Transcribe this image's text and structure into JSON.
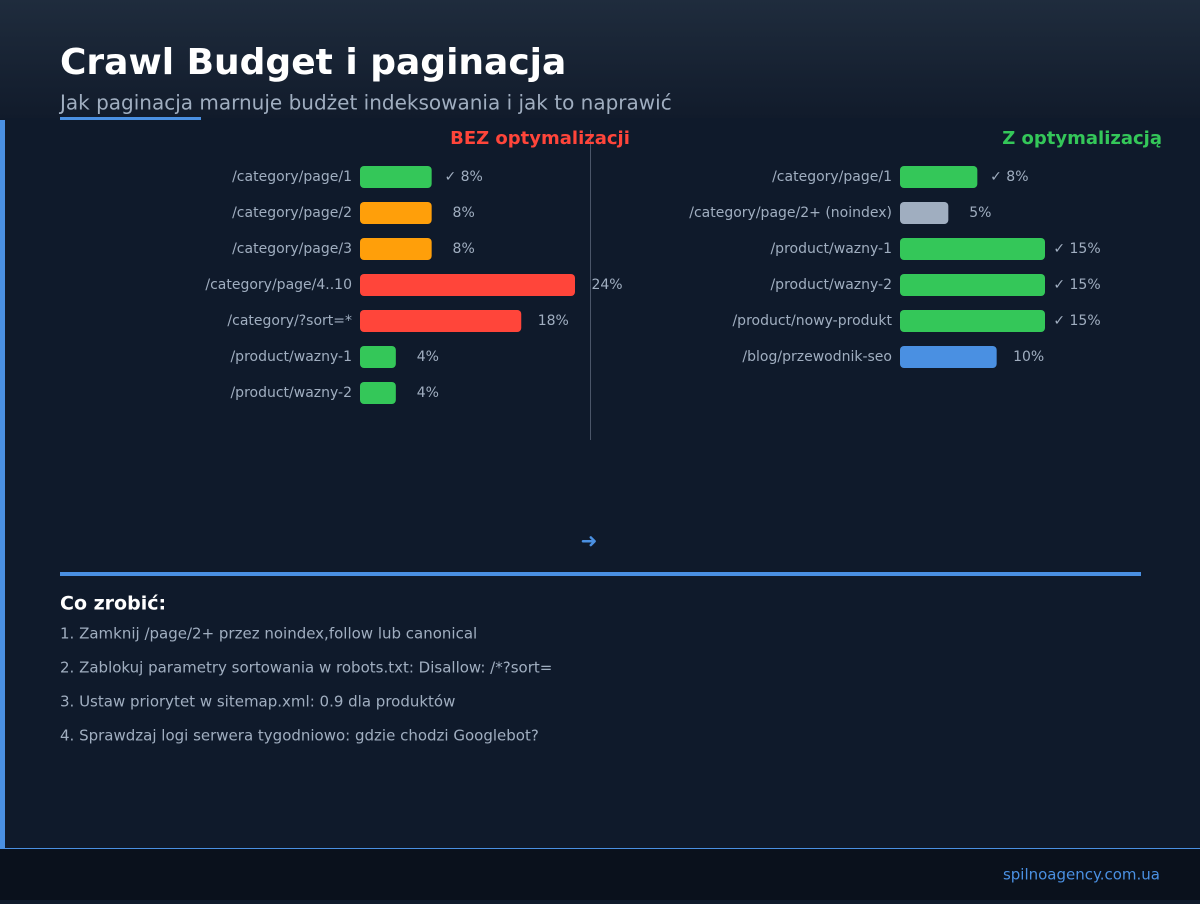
{
  "header": {
    "title": "Crawl Budget i paginacja",
    "subtitle": "Jak paginacja marnuje budżet indeksowania i jak to naprawić"
  },
  "chart_data": [
    {
      "type": "bar",
      "orientation": "horizontal",
      "title": "BEZ optymalizacji",
      "title_color": "#ff453a",
      "categories": [
        "/category/page/1",
        "/category/page/2",
        "/category/page/3",
        "/category/page/4..10",
        "/category/?sort=*",
        "/product/wazny-1",
        "/product/wazny-2"
      ],
      "values": [
        8,
        8,
        8,
        24,
        18,
        4,
        4
      ],
      "value_labels": [
        "✓ 8%",
        "8%",
        "8%",
        "24%",
        "18%",
        "4%",
        "4%"
      ],
      "colors": [
        "#34c759",
        "#ff9f0a",
        "#ff9f0a",
        "#ff453a",
        "#ff453a",
        "#34c759",
        "#34c759"
      ]
    },
    {
      "type": "bar",
      "orientation": "horizontal",
      "title": "Z optymalizacją",
      "title_color": "#34c759",
      "categories": [
        "/category/page/1",
        "/category/page/2+ (noindex)",
        "/product/wazny-1",
        "/product/wazny-2",
        "/product/nowy-produkt",
        "/blog/przewodnik-seo"
      ],
      "values": [
        8,
        5,
        15,
        15,
        15,
        10
      ],
      "value_labels": [
        "✓ 8%",
        "5%",
        "✓ 15%",
        "✓ 15%",
        "✓ 15%",
        "10%"
      ],
      "colors": [
        "#34c759",
        "#a0aec0",
        "#34c759",
        "#34c759",
        "#34c759",
        "#4a90e2"
      ]
    }
  ],
  "arrow": "➜",
  "notes": {
    "title": "Co zrobić:",
    "items": [
      "1. Zamknij /page/2+ przez noindex,follow lub canonical",
      "2. Zablokuj parametry sortowania w robots.txt: Disallow: /*?sort=",
      "3. Ustaw priorytet w sitemap.xml: 0.9 dla produktów",
      "4. Sprawdzaj logi serwera tygodniowo: gdzie chodzi Googlebot?"
    ]
  },
  "footer": "spilnoagency.com.ua"
}
